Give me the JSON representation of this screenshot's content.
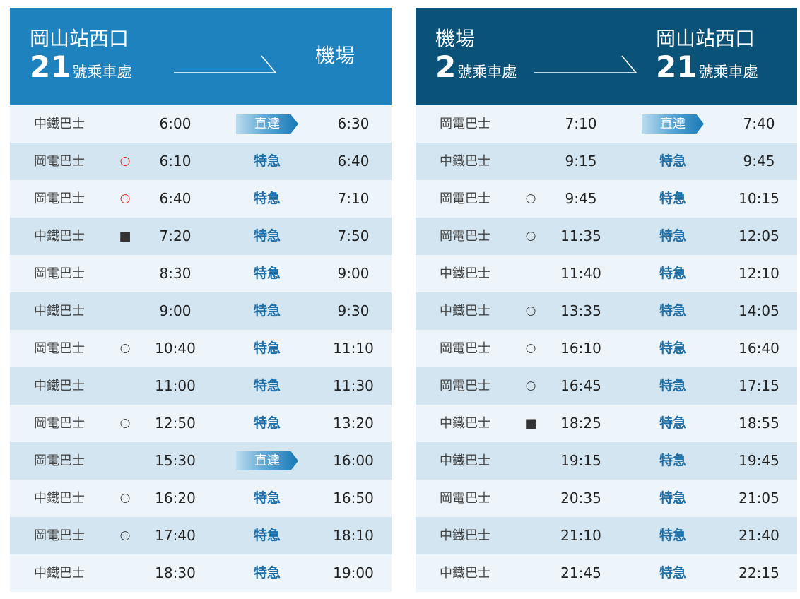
{
  "colors": {
    "left_header": "#1d82be",
    "right_header": "#0b5279",
    "row_light": "#eef5fa",
    "row_dark": "#d3e5f0",
    "express_text": "#1f6fa8",
    "marker_red": "#e02424"
  },
  "left": {
    "from": {
      "name": "岡山站西口",
      "stop_number": "21",
      "stop_suffix": "號乘車處"
    },
    "to": {
      "name": "機場"
    },
    "rows": [
      {
        "operator": "中鐵巴士",
        "mark": "",
        "dep": "6:00",
        "type": "直達",
        "type_kind": "direct",
        "arr": "6:30"
      },
      {
        "operator": "岡電巴士",
        "mark": "○",
        "mark_kind": "circle-red",
        "dep": "6:10",
        "type": "特急",
        "type_kind": "express",
        "arr": "6:40"
      },
      {
        "operator": "岡電巴士",
        "mark": "○",
        "mark_kind": "circle-red",
        "dep": "6:40",
        "type": "特急",
        "type_kind": "express",
        "arr": "7:10"
      },
      {
        "operator": "中鐵巴士",
        "mark": "■",
        "mark_kind": "square",
        "dep": "7:20",
        "type": "特急",
        "type_kind": "express",
        "arr": "7:50"
      },
      {
        "operator": "岡電巴士",
        "mark": "",
        "dep": "8:30",
        "type": "特急",
        "type_kind": "express",
        "arr": "9:00"
      },
      {
        "operator": "中鐵巴士",
        "mark": "",
        "dep": "9:00",
        "type": "特急",
        "type_kind": "express",
        "arr": "9:30"
      },
      {
        "operator": "岡電巴士",
        "mark": "○",
        "mark_kind": "circle",
        "dep": "10:40",
        "type": "特急",
        "type_kind": "express",
        "arr": "11:10"
      },
      {
        "operator": "中鐵巴士",
        "mark": "",
        "dep": "11:00",
        "type": "特急",
        "type_kind": "express",
        "arr": "11:30"
      },
      {
        "operator": "岡電巴士",
        "mark": "○",
        "mark_kind": "circle",
        "dep": "12:50",
        "type": "特急",
        "type_kind": "express",
        "arr": "13:20"
      },
      {
        "operator": "岡電巴士",
        "mark": "",
        "dep": "15:30",
        "type": "直達",
        "type_kind": "direct",
        "arr": "16:00"
      },
      {
        "operator": "中鐵巴士",
        "mark": "○",
        "mark_kind": "circle",
        "dep": "16:20",
        "type": "特急",
        "type_kind": "express",
        "arr": "16:50"
      },
      {
        "operator": "岡電巴士",
        "mark": "○",
        "mark_kind": "circle",
        "dep": "17:40",
        "type": "特急",
        "type_kind": "express",
        "arr": "18:10"
      },
      {
        "operator": "中鐵巴士",
        "mark": "",
        "dep": "18:30",
        "type": "特急",
        "type_kind": "express",
        "arr": "19:00"
      }
    ]
  },
  "right": {
    "from": {
      "name": "機場",
      "stop_number": "2",
      "stop_suffix": "號乘車處"
    },
    "to": {
      "name": "岡山站西口",
      "stop_number": "21",
      "stop_suffix": "號乘車處"
    },
    "rows": [
      {
        "operator": "岡電巴士",
        "mark": "",
        "dep": "7:10",
        "type": "直達",
        "type_kind": "direct",
        "arr": "7:40"
      },
      {
        "operator": "中鐵巴士",
        "mark": "",
        "dep": "9:15",
        "type": "特急",
        "type_kind": "express",
        "arr": "9:45"
      },
      {
        "operator": "岡電巴士",
        "mark": "○",
        "mark_kind": "circle",
        "dep": "9:45",
        "type": "特急",
        "type_kind": "express",
        "arr": "10:15"
      },
      {
        "operator": "岡電巴士",
        "mark": "○",
        "mark_kind": "circle",
        "dep": "11:35",
        "type": "特急",
        "type_kind": "express",
        "arr": "12:05"
      },
      {
        "operator": "中鐵巴士",
        "mark": "",
        "dep": "11:40",
        "type": "特急",
        "type_kind": "express",
        "arr": "12:10"
      },
      {
        "operator": "中鐵巴士",
        "mark": "○",
        "mark_kind": "circle",
        "dep": "13:35",
        "type": "特急",
        "type_kind": "express",
        "arr": "14:05"
      },
      {
        "operator": "岡電巴士",
        "mark": "○",
        "mark_kind": "circle",
        "dep": "16:10",
        "type": "特急",
        "type_kind": "express",
        "arr": "16:40"
      },
      {
        "operator": "岡電巴士",
        "mark": "○",
        "mark_kind": "circle",
        "dep": "16:45",
        "type": "特急",
        "type_kind": "express",
        "arr": "17:15"
      },
      {
        "operator": "中鐵巴士",
        "mark": "■",
        "mark_kind": "square",
        "dep": "18:25",
        "type": "特急",
        "type_kind": "express",
        "arr": "18:55"
      },
      {
        "operator": "中鐵巴士",
        "mark": "",
        "dep": "19:15",
        "type": "特急",
        "type_kind": "express",
        "arr": "19:45"
      },
      {
        "operator": "岡電巴士",
        "mark": "",
        "dep": "20:35",
        "type": "特急",
        "type_kind": "express",
        "arr": "21:05"
      },
      {
        "operator": "中鐵巴士",
        "mark": "",
        "dep": "21:10",
        "type": "特急",
        "type_kind": "express",
        "arr": "21:40"
      },
      {
        "operator": "中鐵巴士",
        "mark": "",
        "dep": "21:45",
        "type": "特急",
        "type_kind": "express",
        "arr": "22:15"
      }
    ]
  }
}
